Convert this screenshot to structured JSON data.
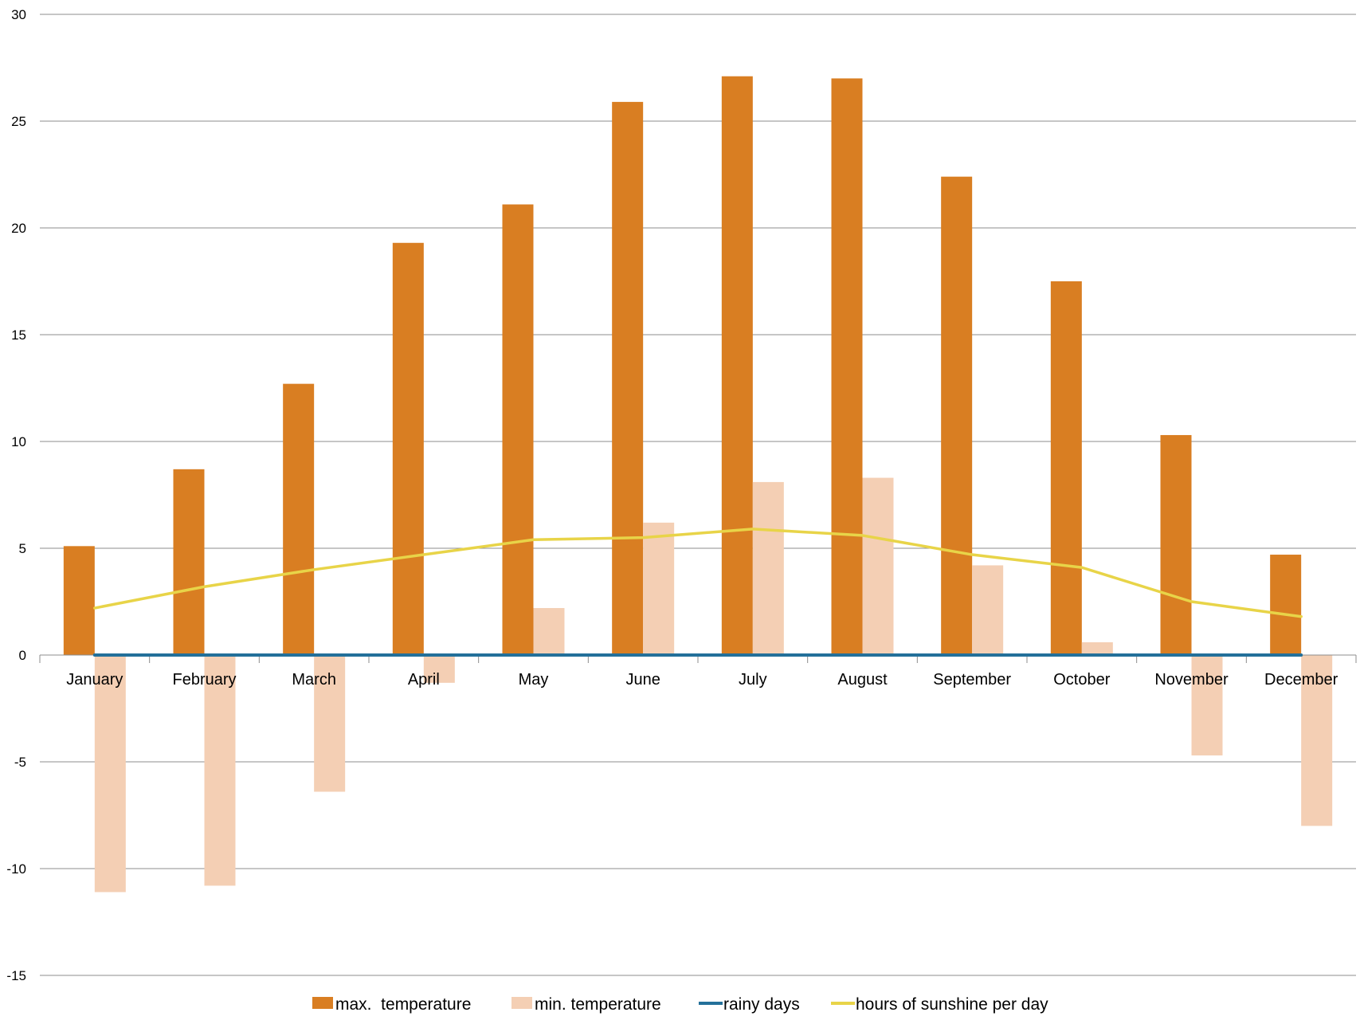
{
  "chart_data": {
    "type": "bar",
    "categories": [
      "January",
      "February",
      "March",
      "April",
      "May",
      "June",
      "July",
      "August",
      "September",
      "October",
      "November",
      "December"
    ],
    "series": [
      {
        "name": "max.  temperature",
        "type": "bar",
        "color": "#d97e22",
        "values": [
          5.1,
          8.7,
          12.7,
          19.3,
          21.1,
          25.9,
          27.1,
          27.0,
          22.4,
          17.5,
          10.3,
          4.7
        ]
      },
      {
        "name": "min. temperature",
        "type": "bar",
        "color": "#f4cfb4",
        "values": [
          -11.1,
          -10.8,
          -6.4,
          -1.3,
          2.2,
          6.2,
          8.1,
          8.3,
          4.2,
          0.6,
          -4.7,
          -8.0
        ]
      },
      {
        "name": "rainy days",
        "type": "line",
        "color": "#23709a",
        "values": [
          0,
          0,
          0,
          0,
          0,
          0,
          0,
          0,
          0,
          0,
          0,
          0
        ]
      },
      {
        "name": "hours of sunshine per day",
        "type": "line",
        "color": "#e8d448",
        "values": [
          2.2,
          3.2,
          4.0,
          4.7,
          5.4,
          5.5,
          5.9,
          5.6,
          4.7,
          4.1,
          2.5,
          1.8
        ]
      }
    ],
    "ylim": [
      -15,
      30
    ],
    "yticks": [
      "30",
      "25",
      "20",
      "15",
      "10",
      "5",
      "0",
      "-5",
      "-10",
      "-15"
    ],
    "grid": true,
    "legend_position": "bottom",
    "title": "",
    "xlabel": "",
    "ylabel": ""
  }
}
